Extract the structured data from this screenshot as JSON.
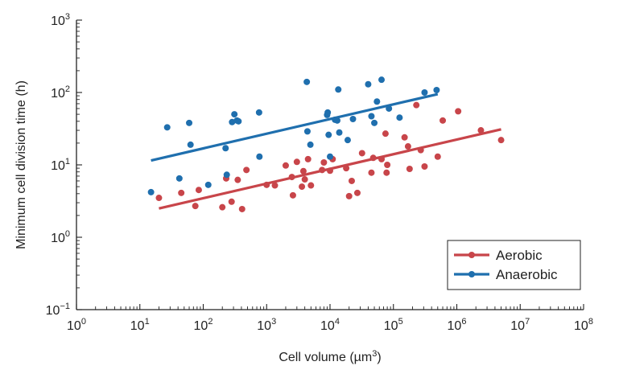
{
  "chart_data": {
    "type": "scatter",
    "xlabel": "Cell volume (µm",
    "xlabel_sup": "3",
    "xlabel_end": ")",
    "ylabel": "Minimum cell division time (h)",
    "x_scale": "log",
    "y_scale": "log",
    "xlim": [
      1,
      100000000
    ],
    "ylim": [
      0.1,
      1000
    ],
    "x_ticks": [
      {
        "base": "10",
        "exp": "0",
        "value": 1
      },
      {
        "base": "10",
        "exp": "1",
        "value": 10
      },
      {
        "base": "10",
        "exp": "2",
        "value": 100
      },
      {
        "base": "10",
        "exp": "3",
        "value": 1000
      },
      {
        "base": "10",
        "exp": "4",
        "value": 10000
      },
      {
        "base": "10",
        "exp": "5",
        "value": 100000
      },
      {
        "base": "10",
        "exp": "6",
        "value": 1000000
      },
      {
        "base": "10",
        "exp": "7",
        "value": 10000000
      },
      {
        "base": "10",
        "exp": "8",
        "value": 100000000
      }
    ],
    "y_ticks": [
      {
        "base": "10",
        "exp": "−1",
        "value": 0.1
      },
      {
        "base": "10",
        "exp": "0",
        "value": 1
      },
      {
        "base": "10",
        "exp": "1",
        "value": 10
      },
      {
        "base": "10",
        "exp": "2",
        "value": 100
      },
      {
        "base": "10",
        "exp": "3",
        "value": 1000
      }
    ],
    "grid": false,
    "legend_position": "bottom-right",
    "series": [
      {
        "name": "Aerobic",
        "color": "#c8454a",
        "fit": {
          "x": [
            20,
            5000000
          ],
          "y": [
            2.5,
            31
          ]
        },
        "points": [
          {
            "x": 20,
            "y": 3.5
          },
          {
            "x": 45,
            "y": 4.1
          },
          {
            "x": 75,
            "y": 2.7
          },
          {
            "x": 85,
            "y": 4.5
          },
          {
            "x": 200,
            "y": 2.6
          },
          {
            "x": 230,
            "y": 6.5
          },
          {
            "x": 280,
            "y": 3.1
          },
          {
            "x": 350,
            "y": 6.2
          },
          {
            "x": 410,
            "y": 2.45
          },
          {
            "x": 480,
            "y": 8.5
          },
          {
            "x": 1000,
            "y": 5.3
          },
          {
            "x": 1350,
            "y": 5.2
          },
          {
            "x": 2000,
            "y": 9.8
          },
          {
            "x": 2500,
            "y": 6.8
          },
          {
            "x": 2600,
            "y": 3.8
          },
          {
            "x": 3000,
            "y": 11
          },
          {
            "x": 3600,
            "y": 5.0
          },
          {
            "x": 3800,
            "y": 8.2
          },
          {
            "x": 4000,
            "y": 6.3
          },
          {
            "x": 4500,
            "y": 12
          },
          {
            "x": 5000,
            "y": 5.2
          },
          {
            "x": 7500,
            "y": 8.5
          },
          {
            "x": 8000,
            "y": 10.8
          },
          {
            "x": 10000,
            "y": 8.3
          },
          {
            "x": 11000,
            "y": 12
          },
          {
            "x": 18000,
            "y": 9
          },
          {
            "x": 20000,
            "y": 3.7
          },
          {
            "x": 22000,
            "y": 6
          },
          {
            "x": 27000,
            "y": 4.1
          },
          {
            "x": 32000,
            "y": 14.5
          },
          {
            "x": 45000,
            "y": 7.8
          },
          {
            "x": 48000,
            "y": 12.5
          },
          {
            "x": 65000,
            "y": 12
          },
          {
            "x": 75000,
            "y": 27
          },
          {
            "x": 78000,
            "y": 7.8
          },
          {
            "x": 80000,
            "y": 10
          },
          {
            "x": 150000,
            "y": 24
          },
          {
            "x": 170000,
            "y": 18
          },
          {
            "x": 180000,
            "y": 8.8
          },
          {
            "x": 230000,
            "y": 67
          },
          {
            "x": 270000,
            "y": 16
          },
          {
            "x": 310000,
            "y": 9.5
          },
          {
            "x": 500000,
            "y": 13
          },
          {
            "x": 600000,
            "y": 41
          },
          {
            "x": 1050000,
            "y": 55
          },
          {
            "x": 2400000,
            "y": 30
          },
          {
            "x": 5000000,
            "y": 22
          }
        ]
      },
      {
        "name": "Anaerobic",
        "color": "#1f6fae",
        "fit": {
          "x": [
            15,
            500000
          ],
          "y": [
            11.5,
            95
          ]
        },
        "points": [
          {
            "x": 15,
            "y": 4.2
          },
          {
            "x": 27,
            "y": 33
          },
          {
            "x": 42,
            "y": 6.5
          },
          {
            "x": 60,
            "y": 38
          },
          {
            "x": 63,
            "y": 19
          },
          {
            "x": 120,
            "y": 5.3
          },
          {
            "x": 225,
            "y": 17
          },
          {
            "x": 235,
            "y": 7.3
          },
          {
            "x": 285,
            "y": 39
          },
          {
            "x": 310,
            "y": 50
          },
          {
            "x": 340,
            "y": 41
          },
          {
            "x": 360,
            "y": 40
          },
          {
            "x": 760,
            "y": 53
          },
          {
            "x": 770,
            "y": 13
          },
          {
            "x": 4300,
            "y": 140
          },
          {
            "x": 4400,
            "y": 29
          },
          {
            "x": 4900,
            "y": 19
          },
          {
            "x": 9000,
            "y": 49
          },
          {
            "x": 9200,
            "y": 53
          },
          {
            "x": 9500,
            "y": 26
          },
          {
            "x": 10000,
            "y": 13
          },
          {
            "x": 12000,
            "y": 42
          },
          {
            "x": 13000,
            "y": 41
          },
          {
            "x": 13500,
            "y": 110
          },
          {
            "x": 14000,
            "y": 28
          },
          {
            "x": 19000,
            "y": 22
          },
          {
            "x": 23000,
            "y": 43
          },
          {
            "x": 40000,
            "y": 130
          },
          {
            "x": 45000,
            "y": 47
          },
          {
            "x": 50000,
            "y": 38
          },
          {
            "x": 55000,
            "y": 75
          },
          {
            "x": 65000,
            "y": 150
          },
          {
            "x": 85000,
            "y": 60
          },
          {
            "x": 125000,
            "y": 45
          },
          {
            "x": 310000,
            "y": 100
          },
          {
            "x": 480000,
            "y": 108
          }
        ]
      }
    ]
  }
}
